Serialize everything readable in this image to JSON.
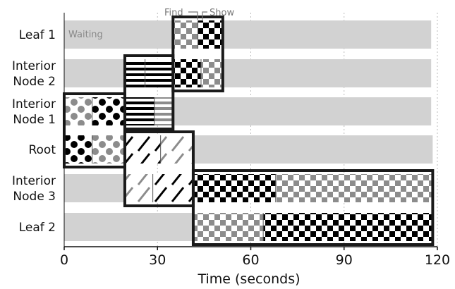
{
  "chart_data": {
    "type": "gantt",
    "xlabel": "Time (seconds)",
    "xlim": [
      0,
      120
    ],
    "xticks": [
      "0",
      "30",
      "60",
      "90",
      "120"
    ],
    "grid": "vertical dashed lines at ticks",
    "rows": [
      {
        "label": [
          "Leaf 1"
        ],
        "bar_end": 118
      },
      {
        "label": [
          "Interior",
          "Node 2"
        ],
        "bar_end": 118
      },
      {
        "label": [
          "Interior",
          "Node 1"
        ],
        "bar_end": 118
      },
      {
        "label": [
          "Root"
        ],
        "bar_end": 118.5
      },
      {
        "label": [
          "Interior",
          "Node 3"
        ],
        "bar_end": 118
      },
      {
        "label": [
          "Leaf 2"
        ],
        "bar_end": 118
      }
    ],
    "waiting_label": "Waiting",
    "annotations": {
      "find": "Find",
      "show": "Show"
    },
    "phases": [
      {
        "row": 0,
        "start": 35,
        "split": 43,
        "end": 51,
        "find_pattern": "gray-checker",
        "show_pattern": "black-checker"
      },
      {
        "row": 1,
        "start": 19.5,
        "split": 26,
        "end": 35,
        "find_pattern": "black-stripes",
        "show_pattern": "black-stripes"
      },
      {
        "row": 1,
        "start": 35,
        "split": 44,
        "end": 51,
        "find_pattern": "black-checker",
        "show_pattern": "gray-checker"
      },
      {
        "row": 2,
        "start": 0,
        "split": 9,
        "end": 19.5,
        "find_pattern": "gray-dots",
        "show_pattern": "black-dots"
      },
      {
        "row": 2,
        "start": 19.5,
        "split": 29,
        "end": 35,
        "find_pattern": "black-stripes",
        "show_pattern": "gray-stripes"
      },
      {
        "row": 3,
        "start": 0,
        "split": 9,
        "end": 19.5,
        "find_pattern": "black-dots",
        "show_pattern": "gray-dots"
      },
      {
        "row": 3,
        "start": 19.5,
        "split": 31,
        "end": 41.5,
        "find_pattern": "black-slash",
        "show_pattern": "gray-slash"
      },
      {
        "row": 4,
        "start": 19.5,
        "split": 28.5,
        "end": 41.5,
        "find_pattern": "gray-slash",
        "show_pattern": "black-slash"
      },
      {
        "row": 4,
        "start": 41.5,
        "split": 68,
        "end": 118.5,
        "find_pattern": "black-checker",
        "show_pattern": "gray-checker"
      },
      {
        "row": 5,
        "start": 41.5,
        "split": 64,
        "end": 118.5,
        "find_pattern": "gray-checker",
        "show_pattern": "black-checker"
      }
    ],
    "colors": {
      "waiting": "#d2d2d2",
      "black": "#000000",
      "gray": "#8c8c8c",
      "border": "#1a1a1a"
    }
  }
}
